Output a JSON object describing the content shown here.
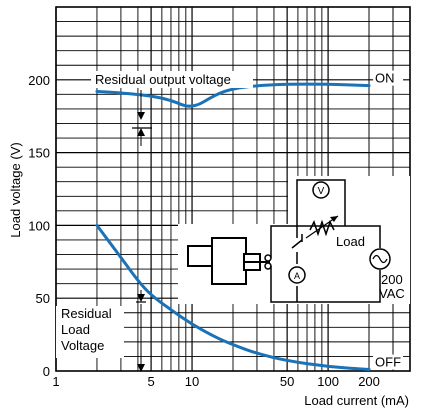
{
  "chart_data": {
    "type": "line",
    "title": "",
    "xlabel": "Load current (mA)",
    "ylabel": "Load voltage (V)",
    "x_scale": "log",
    "xlim": [
      1,
      400
    ],
    "ylim": [
      0,
      250
    ],
    "x_ticks": [
      {
        "value": 1,
        "label": "1"
      },
      {
        "value": 5,
        "label": "5"
      },
      {
        "value": 10,
        "label": "10"
      },
      {
        "value": 50,
        "label": "50"
      },
      {
        "value": 100,
        "label": "100"
      },
      {
        "value": 200,
        "label": "200"
      }
    ],
    "y_ticks": [
      {
        "value": 0,
        "label": "0"
      },
      {
        "value": 50,
        "label": "50"
      },
      {
        "value": 100,
        "label": "100"
      },
      {
        "value": 150,
        "label": "150"
      },
      {
        "value": 200,
        "label": "200"
      }
    ],
    "grid": true,
    "series": [
      {
        "name": "ON",
        "color": "#1a72b8",
        "points": [
          [
            2,
            192
          ],
          [
            3,
            191
          ],
          [
            5,
            189
          ],
          [
            7,
            186
          ],
          [
            10,
            180
          ],
          [
            15,
            190
          ],
          [
            20,
            194
          ],
          [
            30,
            196
          ],
          [
            50,
            197
          ],
          [
            100,
            197
          ],
          [
            200,
            196
          ]
        ]
      },
      {
        "name": "OFF",
        "color": "#1a72b8",
        "points": [
          [
            2,
            100
          ],
          [
            3,
            78
          ],
          [
            4,
            62
          ],
          [
            5,
            52
          ],
          [
            7,
            42
          ],
          [
            10,
            32
          ],
          [
            15,
            23
          ],
          [
            20,
            18
          ],
          [
            30,
            12
          ],
          [
            50,
            7
          ],
          [
            100,
            3
          ],
          [
            200,
            1
          ]
        ]
      }
    ],
    "annotations": {
      "residual_output_voltage": "Residual output voltage",
      "residual_load_voltage": [
        "Residual",
        "Load",
        "Voltage"
      ],
      "circuit_load": "Load",
      "circuit_source": [
        "200",
        "VAC"
      ],
      "ammeter_symbol": "A",
      "voltmeter_symbol": "V"
    }
  }
}
